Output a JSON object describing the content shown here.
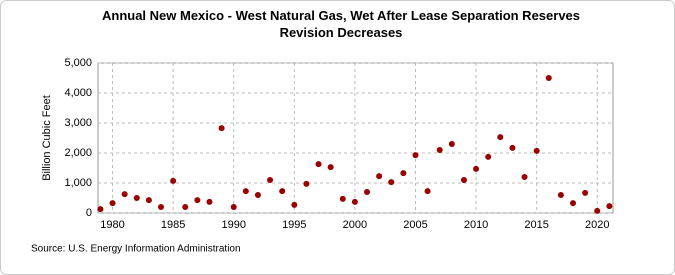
{
  "chart_data": {
    "type": "scatter",
    "title": "Annual New Mexico - West Natural Gas, Wet After Lease Separation Reserves Revision Decreases",
    "y_label": "Billion Cubic Feet",
    "source": "Source: U.S. Energy Information Administration",
    "x": [
      1979,
      1980,
      1981,
      1982,
      1983,
      1984,
      1985,
      1986,
      1987,
      1988,
      1989,
      1990,
      1991,
      1992,
      1993,
      1994,
      1995,
      1996,
      1997,
      1998,
      1999,
      2000,
      2001,
      2002,
      2003,
      2004,
      2005,
      2006,
      2007,
      2008,
      2009,
      2010,
      2011,
      2012,
      2013,
      2014,
      2015,
      2016,
      2017,
      2018,
      2019,
      2020,
      2021
    ],
    "values": [
      130,
      330,
      630,
      500,
      430,
      200,
      1070,
      200,
      430,
      370,
      2830,
      200,
      730,
      600,
      1100,
      730,
      270,
      970,
      1630,
      1530,
      470,
      370,
      700,
      1230,
      1030,
      1330,
      1930,
      730,
      2100,
      2300,
      1100,
      1470,
      1870,
      2530,
      2170,
      1200,
      2070,
      4500,
      600,
      330,
      670,
      70,
      230
    ],
    "color": "#990000",
    "xlim": [
      1978.8,
      2021.3
    ],
    "xticks": [
      1980,
      1985,
      1990,
      1995,
      2000,
      2005,
      2010,
      2015,
      2020
    ],
    "ylim": [
      0,
      5000
    ],
    "yticks": [
      0,
      {
        "value": 1000,
        "label": "1,000"
      },
      {
        "value": 2000,
        "label": "2,000"
      },
      {
        "value": 3000,
        "label": "3,000"
      },
      {
        "value": 4000,
        "label": "4,000"
      },
      {
        "value": 5000,
        "label": "5,000"
      }
    ],
    "grid": true
  }
}
